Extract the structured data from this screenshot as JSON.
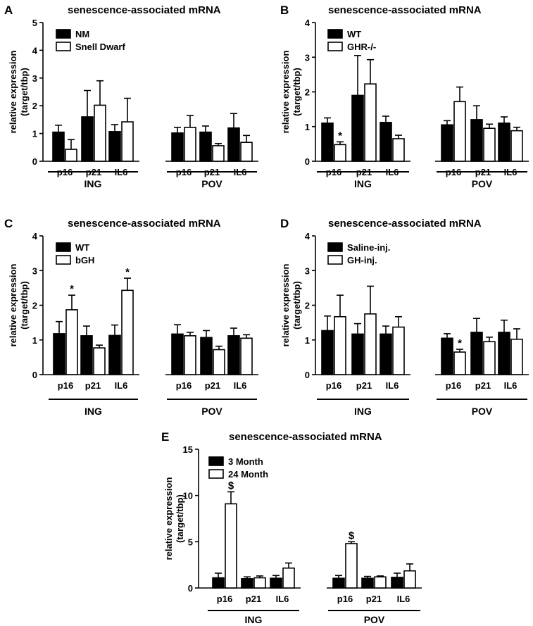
{
  "chart_data": [
    {
      "type": "bar",
      "panel_letter": "A",
      "title": "senescence-associated mRNA",
      "ylabel": [
        "relative expression",
        "(target/tbp)"
      ],
      "ylim": [
        0,
        5
      ],
      "yticks": [
        0,
        1,
        2,
        3,
        4,
        5
      ],
      "categories": [
        "p16",
        "p21",
        "IL6",
        "p16",
        "p21",
        "IL6"
      ],
      "groups": [
        {
          "label": "ING",
          "range": [
            0,
            2
          ]
        },
        {
          "label": "POV",
          "range": [
            3,
            5
          ]
        }
      ],
      "legend_position": "top-left",
      "series": [
        {
          "name": "NM",
          "fill": "#000000",
          "values": [
            1.05,
            1.6,
            1.07,
            1.02,
            1.05,
            1.2
          ],
          "errors": [
            0.25,
            0.95,
            0.25,
            0.2,
            0.22,
            0.52
          ],
          "marks": []
        },
        {
          "name": "Snell Dwarf",
          "fill": "#ffffff",
          "values": [
            0.43,
            2.02,
            1.42,
            1.22,
            0.56,
            0.68
          ],
          "errors": [
            0.35,
            0.88,
            0.85,
            0.43,
            0.08,
            0.25
          ],
          "marks": []
        }
      ]
    },
    {
      "type": "bar",
      "panel_letter": "B",
      "title": "senescence-associated mRNA",
      "ylabel": [
        "relative expression",
        "(target/tbp)"
      ],
      "ylim": [
        0,
        4
      ],
      "yticks": [
        0,
        1,
        2,
        3,
        4
      ],
      "categories": [
        "p16",
        "p21",
        "IL6",
        "p16",
        "p21",
        "IL6"
      ],
      "groups": [
        {
          "label": "ING",
          "range": [
            0,
            2
          ]
        },
        {
          "label": "POV",
          "range": [
            3,
            5
          ]
        }
      ],
      "legend_position": "top-left",
      "series": [
        {
          "name": "WT",
          "fill": "#000000",
          "values": [
            1.1,
            1.9,
            1.12,
            1.05,
            1.2,
            1.1
          ],
          "errors": [
            0.15,
            1.15,
            0.18,
            0.12,
            0.4,
            0.18
          ],
          "marks": []
        },
        {
          "name": "GHR-/-",
          "fill": "#ffffff",
          "values": [
            0.48,
            2.23,
            0.65,
            1.72,
            0.95,
            0.88
          ],
          "errors": [
            0.08,
            0.7,
            0.1,
            0.42,
            0.12,
            0.1
          ],
          "marks": [
            {
              "index": 0,
              "symbol": "*"
            }
          ]
        }
      ]
    },
    {
      "type": "bar",
      "panel_letter": "C",
      "title": "senescence-associated mRNA",
      "ylabel": [
        "relative expression",
        "(target/tbp)"
      ],
      "ylim": [
        0,
        4
      ],
      "yticks": [
        0,
        1,
        2,
        3,
        4
      ],
      "categories": [
        "p16",
        "p21",
        "IL6",
        "p16",
        "p21",
        "IL6"
      ],
      "groups": [
        {
          "label": "ING",
          "range": [
            0,
            2
          ]
        },
        {
          "label": "POV",
          "range": [
            3,
            5
          ]
        }
      ],
      "legend_position": "top-left",
      "series": [
        {
          "name": "WT",
          "fill": "#000000",
          "values": [
            1.18,
            1.12,
            1.13,
            1.17,
            1.07,
            1.12
          ],
          "errors": [
            0.35,
            0.28,
            0.3,
            0.27,
            0.2,
            0.22
          ],
          "marks": []
        },
        {
          "name": "bGH",
          "fill": "#ffffff",
          "values": [
            1.87,
            0.77,
            2.43,
            1.12,
            0.72,
            1.05
          ],
          "errors": [
            0.42,
            0.08,
            0.35,
            0.1,
            0.1,
            0.1
          ],
          "marks": [
            {
              "index": 0,
              "symbol": "*"
            },
            {
              "index": 2,
              "symbol": "*"
            }
          ]
        }
      ]
    },
    {
      "type": "bar",
      "panel_letter": "D",
      "title": "senescence-associated mRNA",
      "ylabel": [
        "relative expression",
        "(target/tbp)"
      ],
      "ylim": [
        0,
        4
      ],
      "yticks": [
        0,
        1,
        2,
        3,
        4
      ],
      "categories": [
        "p16",
        "p21",
        "IL6",
        "p16",
        "p21",
        "IL6"
      ],
      "groups": [
        {
          "label": "ING",
          "range": [
            0,
            2
          ]
        },
        {
          "label": "POV",
          "range": [
            3,
            5
          ]
        }
      ],
      "legend_position": "top-left",
      "series": [
        {
          "name": "Saline-inj.",
          "fill": "#000000",
          "values": [
            1.27,
            1.17,
            1.17,
            1.05,
            1.22,
            1.22
          ],
          "errors": [
            0.42,
            0.3,
            0.23,
            0.13,
            0.4,
            0.35
          ],
          "marks": []
        },
        {
          "name": "GH-inj.",
          "fill": "#ffffff",
          "values": [
            1.67,
            1.75,
            1.37,
            0.65,
            0.95,
            1.02
          ],
          "errors": [
            0.62,
            0.8,
            0.3,
            0.08,
            0.13,
            0.3
          ],
          "marks": [
            {
              "index": 3,
              "symbol": "*"
            }
          ]
        }
      ]
    },
    {
      "type": "bar",
      "panel_letter": "E",
      "title": "senescence-associated mRNA",
      "ylabel": [
        "relative expression",
        "(target/tbp)"
      ],
      "ylim": [
        0,
        15
      ],
      "yticks": [
        0,
        5,
        10,
        15
      ],
      "categories": [
        "p16",
        "p21",
        "IL6",
        "p16",
        "p21",
        "IL6"
      ],
      "groups": [
        {
          "label": "ING",
          "range": [
            0,
            2
          ]
        },
        {
          "label": "POV",
          "range": [
            3,
            5
          ]
        }
      ],
      "legend_position": "top-left",
      "series": [
        {
          "name": "3 Month",
          "fill": "#000000",
          "values": [
            1.1,
            1.0,
            1.05,
            1.05,
            1.05,
            1.15
          ],
          "errors": [
            0.5,
            0.2,
            0.3,
            0.3,
            0.2,
            0.45
          ],
          "marks": []
        },
        {
          "name": "24 Month",
          "fill": "#ffffff",
          "values": [
            9.1,
            1.1,
            2.15,
            4.8,
            1.2,
            1.85
          ],
          "errors": [
            1.3,
            0.2,
            0.55,
            0.2,
            0.1,
            0.75
          ],
          "marks": [
            {
              "index": 0,
              "symbol": "$"
            },
            {
              "index": 3,
              "symbol": "$"
            }
          ]
        }
      ]
    }
  ]
}
